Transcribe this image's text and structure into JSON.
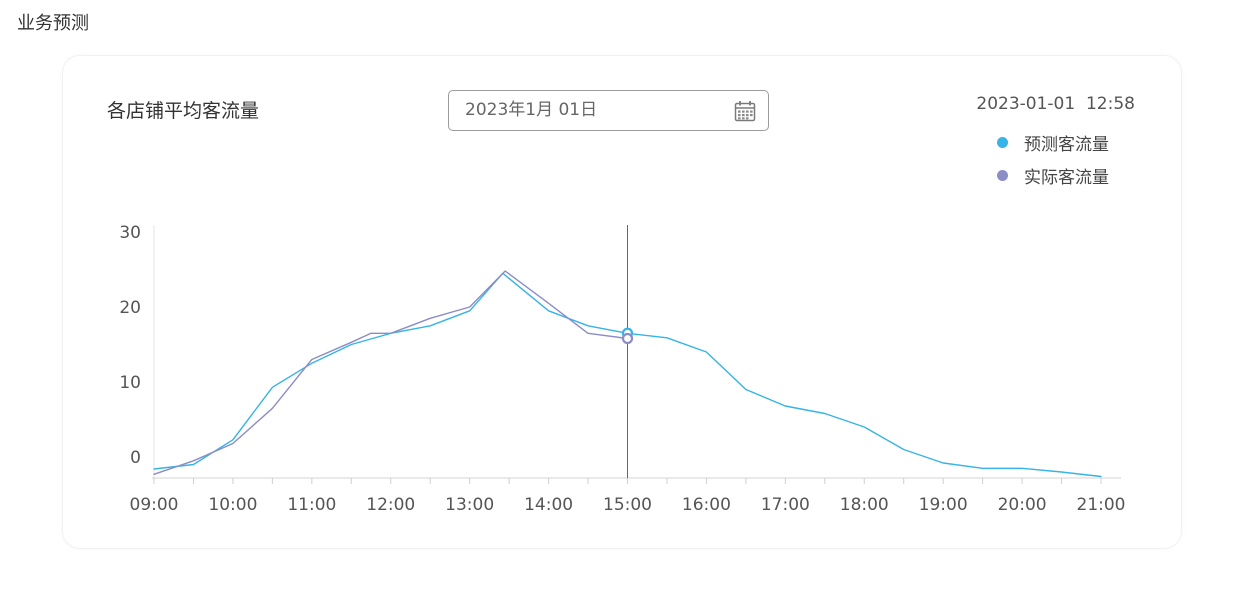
{
  "page": {
    "title": "业务预测"
  },
  "card": {
    "chart_title": "各店铺平均客流量",
    "date_picker": {
      "value": "2023年1月 01日",
      "icon": "calendar-icon"
    },
    "timestamp": "2023-01-01  12:58"
  },
  "chart_data": {
    "type": "line",
    "title": "各店铺平均客流量",
    "xlabel": "",
    "ylabel": "",
    "x_ticks": [
      "09:00",
      "10:00",
      "11:00",
      "12:00",
      "13:00",
      "14:00",
      "15:00",
      "16:00",
      "17:00",
      "18:00",
      "19:00",
      "20:00",
      "21:00"
    ],
    "y_ticks": [
      0,
      10,
      20,
      30
    ],
    "ylim": [
      -3,
      30
    ],
    "xlim": [
      9,
      21
    ],
    "grid": false,
    "legend_position": "top-right",
    "cursor": {
      "x": 15.0,
      "predicted_value": 16.5,
      "actual_value": 15.8
    },
    "series": [
      {
        "name": "预测客流量",
        "color": "#35b4e8",
        "points": [
          [
            9.0,
            -1.6
          ],
          [
            9.5,
            -1.0
          ],
          [
            10.0,
            2.3
          ],
          [
            10.5,
            9.3
          ],
          [
            11.0,
            12.5
          ],
          [
            11.5,
            15.0
          ],
          [
            12.0,
            16.5
          ],
          [
            12.5,
            17.5
          ],
          [
            13.0,
            19.5
          ],
          [
            13.42,
            24.5
          ],
          [
            14.0,
            19.5
          ],
          [
            14.5,
            17.5
          ],
          [
            15.0,
            16.5
          ],
          [
            15.5,
            15.9
          ],
          [
            16.0,
            14.0
          ],
          [
            16.5,
            9.0
          ],
          [
            17.0,
            6.8
          ],
          [
            17.5,
            5.8
          ],
          [
            18.0,
            4.0
          ],
          [
            18.5,
            1.0
          ],
          [
            19.0,
            -0.8
          ],
          [
            19.5,
            -1.5
          ],
          [
            20.0,
            -1.5
          ],
          [
            20.5,
            -2.0
          ],
          [
            21.0,
            -2.6
          ]
        ]
      },
      {
        "name": "实际客流量",
        "color": "#8b8dc4",
        "points": [
          [
            9.0,
            -2.3
          ],
          [
            9.5,
            -0.5
          ],
          [
            10.0,
            1.8
          ],
          [
            10.5,
            6.5
          ],
          [
            11.0,
            13.0
          ],
          [
            11.5,
            15.3
          ],
          [
            11.75,
            16.5
          ],
          [
            12.0,
            16.5
          ],
          [
            12.5,
            18.5
          ],
          [
            13.0,
            20.0
          ],
          [
            13.45,
            24.8
          ],
          [
            14.0,
            20.5
          ],
          [
            14.5,
            16.5
          ],
          [
            15.0,
            15.8
          ]
        ]
      }
    ]
  }
}
